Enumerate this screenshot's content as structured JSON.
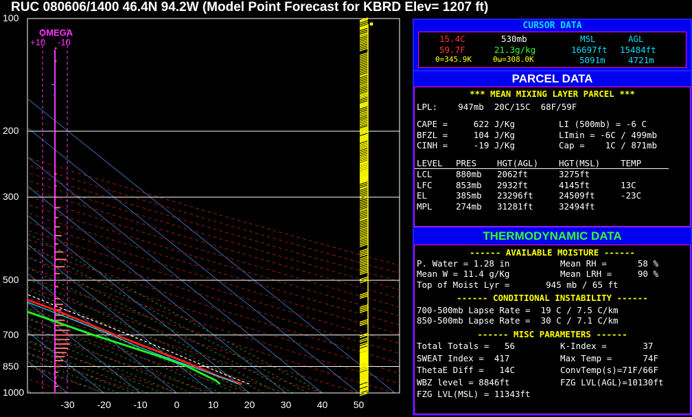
{
  "title": "RUC 080606/1400 46.4N  94.2W  (Model Point Forecast for KBRD Elev= 1207 ft)",
  "chart_data": {
    "type": "line",
    "title": "RUC 080606/1400 46.4N  94.2W  (Model Point Forecast for KBRD Elev= 1207 ft)",
    "pressure_levels": [
      100,
      200,
      300,
      500,
      700,
      850,
      1000
    ],
    "pressure_labels": [
      "100",
      "200",
      "300",
      "500",
      "700",
      "850",
      "1000"
    ],
    "temp_ticks": [
      -30,
      -20,
      -10,
      0,
      10,
      20,
      30,
      40,
      50
    ],
    "temp_labels": [
      "-30",
      "-20",
      "-10",
      "0",
      "10",
      "20",
      "30",
      "40",
      "50"
    ],
    "ylim": [
      1000,
      100
    ],
    "xlim": [
      -40,
      55
    ],
    "omega_label": "OMEGA",
    "omega_left_label": "+10",
    "omega_right_label": "-10",
    "series": [
      {
        "color": "#ff2020",
        "points": [
          [
            946,
            21
          ],
          [
            925,
            19
          ],
          [
            900,
            17
          ],
          [
            860,
            15
          ],
          [
            800,
            11
          ],
          [
            700,
            3
          ],
          [
            600,
            -5
          ],
          [
            500,
            -17
          ],
          [
            400,
            -27
          ],
          [
            300,
            -43
          ],
          [
            250,
            -52
          ],
          [
            200,
            -58
          ],
          [
            150,
            -57
          ],
          [
            125,
            -55
          ],
          [
            100,
            -57
          ]
        ]
      },
      {
        "color": "#22ee22",
        "points": [
          [
            946,
            15
          ],
          [
            925,
            15
          ],
          [
            900,
            14
          ],
          [
            850,
            12
          ],
          [
            800,
            8
          ],
          [
            700,
            -3
          ],
          [
            600,
            -14
          ],
          [
            500,
            -23
          ],
          [
            450,
            -33
          ],
          [
            400,
            -39
          ],
          [
            350,
            -51
          ],
          [
            300,
            -60
          ],
          [
            250,
            -70
          ],
          [
            200,
            -78
          ],
          [
            180,
            -77
          ],
          [
            150,
            -74
          ],
          [
            125,
            -76
          ],
          [
            100,
            -77
          ]
        ]
      },
      {
        "color": "#00e5ff",
        "points": [
          [
            946,
            20
          ],
          [
            900,
            17
          ],
          [
            850,
            13
          ],
          [
            800,
            9
          ],
          [
            750,
            5
          ],
          [
            700,
            2
          ],
          [
            600,
            -7
          ],
          [
            500,
            -18
          ],
          [
            400,
            -30
          ],
          [
            350,
            -36
          ],
          [
            300,
            -44
          ],
          [
            250,
            -54
          ],
          [
            200,
            -62
          ],
          [
            150,
            -62
          ],
          [
            100,
            -62
          ]
        ]
      },
      {
        "color": "#ffffff",
        "dash": true,
        "points": [
          [
            946,
            23
          ],
          [
            900,
            20
          ],
          [
            850,
            17
          ],
          [
            800,
            14
          ],
          [
            700,
            7
          ],
          [
            600,
            -2
          ],
          [
            500,
            -12
          ],
          [
            400,
            -26
          ],
          [
            300,
            -44
          ],
          [
            200,
            -68
          ],
          [
            150,
            -80
          ],
          [
            100,
            -95
          ]
        ]
      }
    ],
    "omega_bars": [
      [
        960,
        2
      ],
      [
        940,
        1
      ],
      [
        910,
        1
      ],
      [
        880,
        2
      ],
      [
        850,
        3
      ],
      [
        820,
        5
      ],
      [
        800,
        6
      ],
      [
        780,
        7
      ],
      [
        760,
        8
      ],
      [
        740,
        9
      ],
      [
        720,
        9
      ],
      [
        700,
        10
      ],
      [
        680,
        9
      ],
      [
        660,
        7
      ],
      [
        640,
        6
      ],
      [
        620,
        5
      ],
      [
        600,
        4
      ],
      [
        580,
        5
      ],
      [
        560,
        3
      ],
      [
        520,
        2
      ],
      [
        480,
        3
      ],
      [
        460,
        6
      ],
      [
        440,
        7
      ],
      [
        420,
        5
      ],
      [
        400,
        2
      ],
      [
        380,
        4
      ],
      [
        360,
        3
      ],
      [
        340,
        2
      ],
      [
        320,
        3
      ],
      [
        300,
        2
      ],
      [
        280,
        1
      ],
      [
        260,
        1
      ],
      [
        200,
        1
      ],
      [
        160,
        -1
      ],
      [
        130,
        1
      ],
      [
        120,
        1
      ],
      [
        150,
        -2
      ]
    ],
    "wind_barbs": [
      [
        1000,
        20
      ],
      [
        975,
        20
      ],
      [
        950,
        25
      ],
      [
        925,
        30
      ],
      [
        900,
        35
      ],
      [
        880,
        35
      ],
      [
        860,
        35
      ],
      [
        840,
        35
      ],
      [
        820,
        30
      ],
      [
        800,
        25
      ],
      [
        780,
        20
      ],
      [
        760,
        15
      ],
      [
        740,
        10
      ],
      [
        720,
        10
      ],
      [
        700,
        10
      ],
      [
        650,
        15
      ],
      [
        600,
        20
      ],
      [
        550,
        15
      ],
      [
        500,
        15
      ],
      [
        475,
        25
      ],
      [
        450,
        25
      ],
      [
        425,
        20
      ],
      [
        400,
        25
      ],
      [
        380,
        30
      ],
      [
        360,
        30
      ],
      [
        340,
        30
      ],
      [
        320,
        30
      ],
      [
        300,
        35
      ],
      [
        280,
        35
      ],
      [
        270,
        35
      ],
      [
        260,
        40
      ],
      [
        250,
        40
      ],
      [
        240,
        40
      ],
      [
        230,
        45
      ],
      [
        220,
        50
      ],
      [
        210,
        50
      ],
      [
        200,
        50
      ],
      [
        190,
        50
      ],
      [
        180,
        50
      ],
      [
        170,
        45
      ],
      [
        160,
        40
      ],
      [
        150,
        35
      ],
      [
        140,
        35
      ],
      [
        130,
        30
      ],
      [
        120,
        30
      ],
      [
        115,
        30
      ],
      [
        110,
        30
      ],
      [
        105,
        30
      ],
      [
        100,
        5
      ]
    ]
  },
  "cursor": {
    "header": "CURSOR DATA",
    "tempc": "15.4C",
    "pres": "530mb",
    "msl_label": "MSL",
    "agl_label": "AGL",
    "tempf": "59.7F",
    "mix": "21.3g/kg",
    "msl_ft": "16697ft",
    "agl_ft": "15484ft",
    "theta": "θ=345.9K",
    "thetaw": "θω=308.0K",
    "msl_m": "5091m",
    "agl_m": "4721m"
  },
  "parcel": {
    "header": "PARCEL DATA",
    "subtitle": "*** MEAN MIXING LAYER PARCEL ***",
    "lpl": "LPL:    947mb  20C/15C  68F/59F",
    "rows": [
      [
        "CAPE =     622 J/Kg",
        "LI (500mb) = -6 C"
      ],
      [
        "BFZL =     104 J/Kg",
        "LImin = -6C / 499mb"
      ],
      [
        "CINH =     -19 J/Kg",
        "Cap =    1C / 871mb"
      ]
    ],
    "table_header": [
      "LEVEL",
      "PRES",
      "HGT(AGL)",
      "HGT(MSL)",
      "TEMP"
    ],
    "table_rows": [
      [
        "LCL",
        "880mb",
        "2062ft",
        "3275ft",
        ""
      ],
      [
        "LFC",
        "853mb",
        "2932ft",
        "4145ft",
        "13C"
      ],
      [
        "EL",
        "385mb",
        "23296ft",
        "24509ft",
        "-23C"
      ],
      [
        "MPL",
        "274mb",
        "31281ft",
        "32494ft",
        ""
      ]
    ]
  },
  "thermo": {
    "header": "THERMODYNAMIC DATA",
    "moist_header": "------ AVAILABLE MOISTURE ------",
    "moist_rows": [
      [
        "P. Water = 1.28 in",
        "Mean RH =      58 %"
      ],
      [
        "Mean W = 11.4 g/Kg",
        "Mean LRH =     90 %"
      ]
    ],
    "moist_top": "Top of Moist Lyr =       945 mb / 65 ft",
    "instab_header": "------ CONDITIONAL INSTABILITY ------",
    "instab_rows": [
      "700-500mb Lapse Rate =  19 C / 7.5 C/km",
      "850-500mb Lapse Rate =  30 C / 7.1 C/km"
    ],
    "misc_header": "------ MISC PARAMETERS ------",
    "misc_rows": [
      [
        "Total Totals =   56",
        "K-Index =       37"
      ],
      [
        "SWEAT Index =  417",
        "Max Temp =      74F"
      ],
      [
        "ThetaE Diff =   14C",
        "ConvTemp(s)=71F/66F"
      ],
      [
        "WBZ level = 8846ft",
        "FZG LVL(AGL)=10130ft"
      ]
    ],
    "fzg_msl": "FZG LVL(MSL) = 11343ft"
  }
}
